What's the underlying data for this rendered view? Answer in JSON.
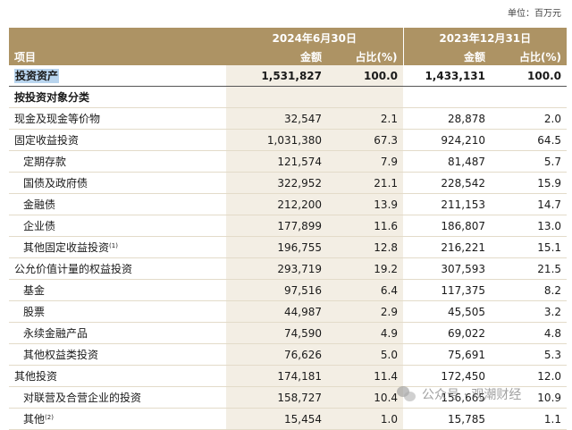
{
  "unit_label": "单位：百万元",
  "header": {
    "period1": "2024年6月30日",
    "period2": "2023年12月31日",
    "item": "项目",
    "amount": "金额",
    "ratio": "占比(%)"
  },
  "rows": [
    {
      "label": "投资资产",
      "a1": "1,531,827",
      "r1": "100.0",
      "a2": "1,433,131",
      "r2": "100.0"
    },
    {
      "label": "按投资对象分类",
      "a1": "",
      "r1": "",
      "a2": "",
      "r2": ""
    },
    {
      "label": "现金及现金等价物",
      "a1": "32,547",
      "r1": "2.1",
      "a2": "28,878",
      "r2": "2.0"
    },
    {
      "label": "固定收益投资",
      "a1": "1,031,380",
      "r1": "67.3",
      "a2": "924,210",
      "r2": "64.5"
    },
    {
      "label": "定期存款",
      "a1": "121,574",
      "r1": "7.9",
      "a2": "81,487",
      "r2": "5.7"
    },
    {
      "label": "国债及政府债",
      "a1": "322,952",
      "r1": "21.1",
      "a2": "228,542",
      "r2": "15.9"
    },
    {
      "label": "金融债",
      "a1": "212,200",
      "r1": "13.9",
      "a2": "211,153",
      "r2": "14.7"
    },
    {
      "label": "企业债",
      "a1": "177,899",
      "r1": "11.6",
      "a2": "186,807",
      "r2": "13.0"
    },
    {
      "label": "其他固定收益投资",
      "sup": "(1)",
      "a1": "196,755",
      "r1": "12.8",
      "a2": "216,221",
      "r2": "15.1"
    },
    {
      "label": "公允价值计量的权益投资",
      "a1": "293,719",
      "r1": "19.2",
      "a2": "307,593",
      "r2": "21.5"
    },
    {
      "label": "基金",
      "a1": "97,516",
      "r1": "6.4",
      "a2": "117,375",
      "r2": "8.2"
    },
    {
      "label": "股票",
      "a1": "44,987",
      "r1": "2.9",
      "a2": "45,505",
      "r2": "3.2"
    },
    {
      "label": "永续金融产品",
      "a1": "74,590",
      "r1": "4.9",
      "a2": "69,022",
      "r2": "4.8"
    },
    {
      "label": "其他权益类投资",
      "a1": "76,626",
      "r1": "5.0",
      "a2": "75,691",
      "r2": "5.3"
    },
    {
      "label": "其他投资",
      "a1": "174,181",
      "r1": "11.4",
      "a2": "172,450",
      "r2": "12.0"
    },
    {
      "label": "对联营及合营企业的投资",
      "a1": "158,727",
      "r1": "10.4",
      "a2": "156,665",
      "r2": "10.9"
    },
    {
      "label": "其他",
      "sup": "(2)",
      "a1": "15,454",
      "r1": "1.0",
      "a2": "15,785",
      "r2": "1.1"
    }
  ],
  "watermark": "公众号 · 观潮财经"
}
